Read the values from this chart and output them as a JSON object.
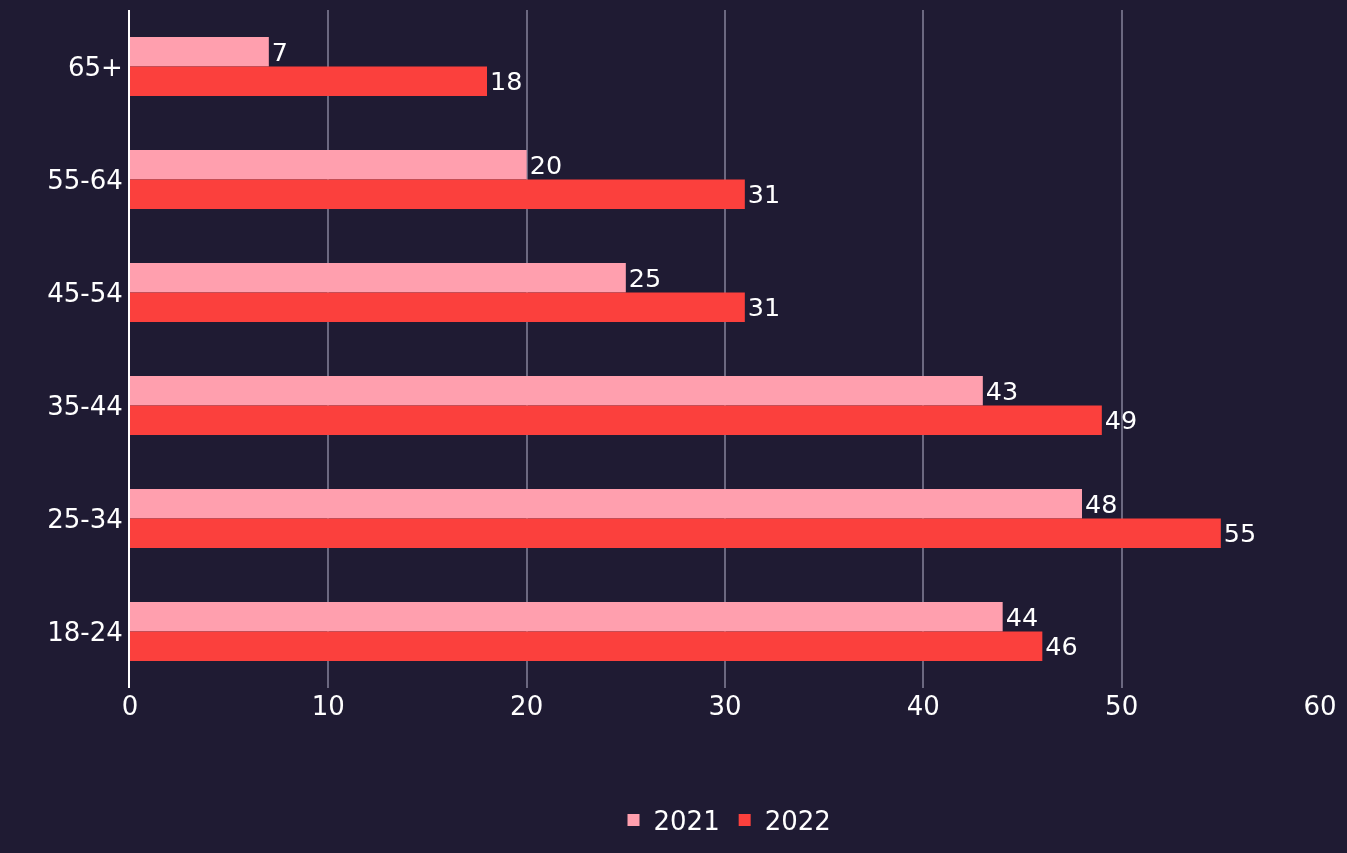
{
  "chart_data": {
    "type": "bar",
    "orientation": "horizontal",
    "categories": [
      "65+",
      "55-64",
      "45-54",
      "35-44",
      "25-34",
      "18-24"
    ],
    "series": [
      {
        "name": "2021",
        "color": "#ff9fae",
        "values": [
          7,
          20,
          25,
          43,
          48,
          44
        ]
      },
      {
        "name": "2022",
        "color": "#fb403d",
        "values": [
          18,
          31,
          31,
          49,
          55,
          46
        ]
      }
    ],
    "xlim": [
      0,
      60
    ],
    "xticks": [
      0,
      10,
      20,
      30,
      40,
      50,
      60
    ],
    "grid": "x",
    "legend": "bottom",
    "data_labels": true
  }
}
